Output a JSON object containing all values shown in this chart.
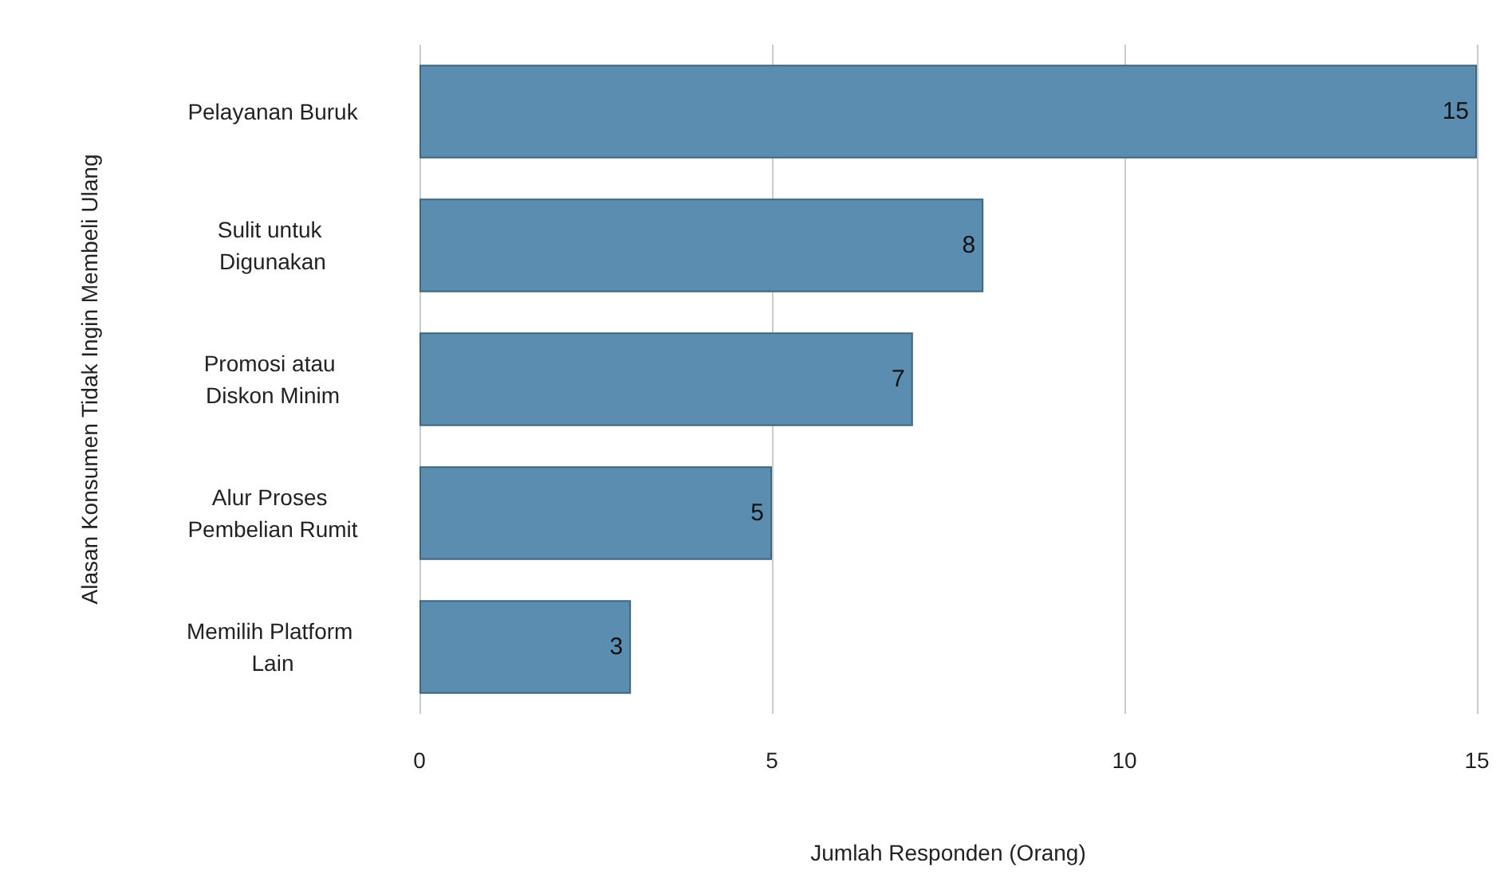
{
  "chart_data": {
    "type": "bar",
    "orientation": "horizontal",
    "xlabel": "Jumlah Responden (Orang)",
    "ylabel": "Alasan Konsumen Tidak Ingin Membeli Ulang",
    "categories": [
      "Pelayanan Buruk",
      "Sulit untuk Digunakan",
      "Promosi atau Diskon Minim",
      "Alur Proses Pembelian Rumit",
      "Memilih Platform Lain"
    ],
    "values": [
      15,
      8,
      7,
      5,
      3
    ],
    "color": "#5a8db0",
    "xlim": [
      0,
      15
    ],
    "xticks": [
      0,
      5,
      10,
      15
    ],
    "grid": "x",
    "data_labels": true
  }
}
